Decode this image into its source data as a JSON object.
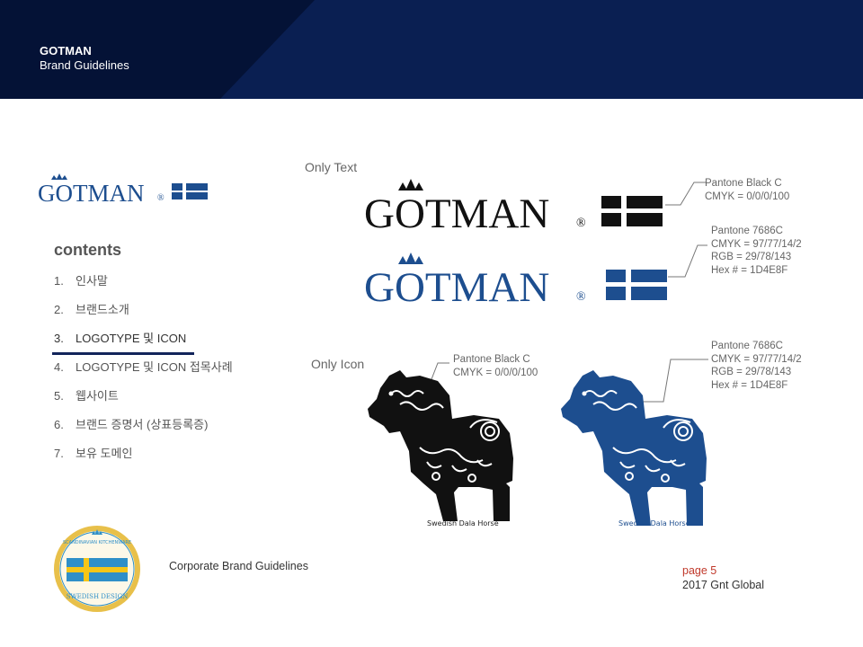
{
  "header": {
    "brand": "GOTMAN",
    "subtitle": "Brand Guidelines"
  },
  "logo": {
    "wordmark": "GOTMAN",
    "registered": "®"
  },
  "contents": {
    "title": "contents",
    "items": [
      {
        "num": "1.",
        "label": "인사말"
      },
      {
        "num": "2.",
        "label": "브랜드소개"
      },
      {
        "num": "3.",
        "label": "LOGOTYPE 및 ICON"
      },
      {
        "num": "4.",
        "label": "LOGOTYPE 및 ICON 접목사례"
      },
      {
        "num": "5.",
        "label": "웹사이트"
      },
      {
        "num": "6.",
        "label": "브랜드 증명서 (상표등록증)"
      },
      {
        "num": "7.",
        "label": "보유 도메인"
      }
    ],
    "active_index": 2
  },
  "only_text": {
    "label": "Only Text",
    "black_spec": [
      "Pantone  Black C",
      "CMYK = 0/0/0/100"
    ],
    "blue_spec": [
      "Pantone 7686C",
      "CMYK = 97/77/14/2",
      "RGB = 29/78/143",
      "Hex # = 1D4E8F"
    ]
  },
  "only_icon": {
    "label": "Only Icon",
    "black_spec": [
      "Pantone  Black C",
      "CMYK = 0/0/0/100"
    ],
    "blue_spec": [
      "Pantone 7686C",
      "CMYK = 97/77/14/2",
      "RGB = 29/78/143",
      "Hex # = 1D4E8F"
    ],
    "horse_caption": "Swedish Dala Horse"
  },
  "seal": {
    "top_text": "SCANDINAVIAN KITCHENWARE",
    "bottom_text": "SWEDISH DESIGN"
  },
  "footer": {
    "text": "Corporate Brand Guidelines",
    "page": "page 5",
    "company": "2017 Gnt Global"
  },
  "colors": {
    "navy": "#0a1f52",
    "brand_blue": "#1D4E8F",
    "black": "#111111",
    "page_red": "#c0392b",
    "seal_gold": "#e8c04a"
  }
}
